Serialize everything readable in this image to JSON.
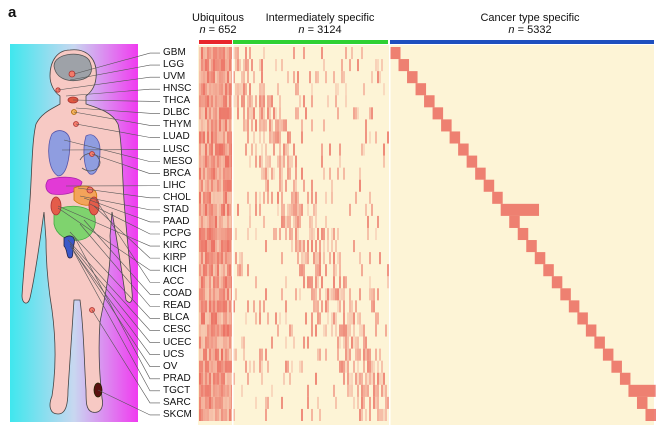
{
  "panel": {
    "label": "a"
  },
  "groups": [
    {
      "title": "Ubiquitous",
      "n_prefix": "n",
      "n_value": "652",
      "color": "#e8262a"
    },
    {
      "title": "Intermediately specific",
      "n_prefix": "n",
      "n_value": "3124",
      "color": "#2fd133"
    },
    {
      "title": "Cancer type specific",
      "n_prefix": "n",
      "n_value": "5332",
      "color": "#1e4fbf"
    }
  ],
  "cancer_types": [
    "GBM",
    "LGG",
    "UVM",
    "HNSC",
    "THCA",
    "DLBC",
    "THYM",
    "LUAD",
    "LUSC",
    "MESO",
    "BRCA",
    "LIHC",
    "CHOL",
    "STAD",
    "PAAD",
    "PCPG",
    "KIRC",
    "KIRP",
    "KICH",
    "ACC",
    "COAD",
    "READ",
    "BLCA",
    "CESC",
    "UCEC",
    "UCS",
    "OV",
    "PRAD",
    "TGCT",
    "SARC",
    "SKCM"
  ],
  "icons": {
    "body": "human-body-icon"
  },
  "colors": {
    "heat_bg": "#fdf4d6",
    "heat_high": "#e85a4f",
    "body_fill": "#f7c9c4"
  }
}
